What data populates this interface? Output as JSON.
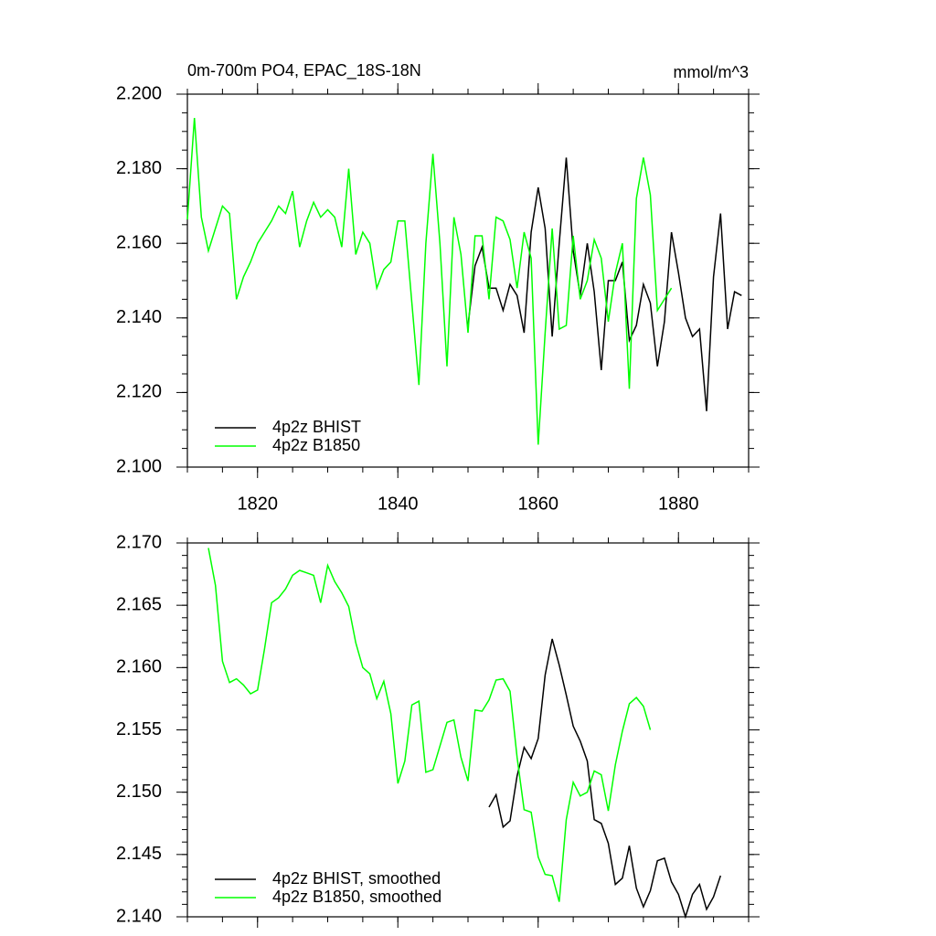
{
  "chart_data": [
    {
      "type": "line",
      "title": "0m-700m PO4, EPAC_18S-18N",
      "units": "mmol/m^3",
      "xlim": [
        1810,
        1890
      ],
      "xticks": [
        1820,
        1840,
        1860,
        1880
      ],
      "ylim": [
        2.1,
        2.2
      ],
      "yticks": [
        {
          "value": 2.1,
          "label": "2.100"
        },
        {
          "value": 2.12,
          "label": "2.120"
        },
        {
          "value": 2.14,
          "label": "2.140"
        },
        {
          "value": 2.16,
          "label": "2.160"
        },
        {
          "value": 2.18,
          "label": "2.180"
        },
        {
          "value": 2.2,
          "label": "2.200"
        }
      ],
      "legend": "lower left",
      "series": [
        {
          "name": "4p2z BHIST",
          "color": "#000000",
          "x": [
            1850,
            1851,
            1852,
            1853,
            1854,
            1855,
            1856,
            1857,
            1858,
            1859,
            1860,
            1861,
            1862,
            1863,
            1864,
            1865,
            1866,
            1867,
            1868,
            1869,
            1870,
            1871,
            1872,
            1873,
            1874,
            1875,
            1876,
            1877,
            1878,
            1879,
            1880,
            1881,
            1882,
            1883,
            1884,
            1885,
            1886,
            1887,
            1888,
            1889
          ],
          "values": [
            2.138,
            2.154,
            2.159,
            2.148,
            2.148,
            2.142,
            2.149,
            2.146,
            2.136,
            2.163,
            2.175,
            2.164,
            2.135,
            2.16,
            2.183,
            2.158,
            2.146,
            2.16,
            2.147,
            2.126,
            2.15,
            2.15,
            2.155,
            2.134,
            2.138,
            2.149,
            2.144,
            2.127,
            2.139,
            2.163,
            2.152,
            2.14,
            2.135,
            2.137,
            2.115,
            2.151,
            2.168,
            2.137,
            2.147,
            2.146
          ]
        },
        {
          "name": "4p2z B1850",
          "color": "#00ff00",
          "x": [
            1810,
            1811,
            1812,
            1813,
            1814,
            1815,
            1816,
            1817,
            1818,
            1819,
            1820,
            1821,
            1822,
            1823,
            1824,
            1825,
            1826,
            1827,
            1828,
            1829,
            1830,
            1831,
            1832,
            1833,
            1834,
            1835,
            1836,
            1837,
            1838,
            1839,
            1840,
            1841,
            1842,
            1843,
            1844,
            1845,
            1846,
            1847,
            1848,
            1849,
            1850,
            1851,
            1852,
            1853,
            1854,
            1855,
            1856,
            1857,
            1858,
            1859,
            1860,
            1861,
            1862,
            1863,
            1864,
            1865,
            1866,
            1867,
            1868,
            1869,
            1870,
            1871,
            1872,
            1873,
            1874,
            1875,
            1876,
            1877,
            1878,
            1879
          ],
          "values": [
            2.1664,
            2.1936,
            2.167,
            2.158,
            2.164,
            2.17,
            2.168,
            2.145,
            2.151,
            2.155,
            2.16,
            2.163,
            2.166,
            2.17,
            2.168,
            2.174,
            2.159,
            2.166,
            2.171,
            2.167,
            2.169,
            2.167,
            2.159,
            2.18,
            2.157,
            2.163,
            2.16,
            2.148,
            2.153,
            2.155,
            2.166,
            2.166,
            2.144,
            2.122,
            2.16,
            2.184,
            2.16,
            2.127,
            2.167,
            2.157,
            2.136,
            2.162,
            2.162,
            2.145,
            2.167,
            2.166,
            2.161,
            2.148,
            2.163,
            2.156,
            2.106,
            2.136,
            2.164,
            2.137,
            2.138,
            2.162,
            2.145,
            2.15,
            2.161,
            2.156,
            2.139,
            2.152,
            2.16,
            2.121,
            2.172,
            2.183,
            2.173,
            2.142,
            2.145,
            2.148
          ]
        }
      ]
    },
    {
      "type": "line",
      "xlim": [
        1810,
        1890
      ],
      "xticks": [
        1820,
        1840,
        1860,
        1880
      ],
      "ylim": [
        2.14,
        2.17
      ],
      "yticks": [
        {
          "value": 2.14,
          "label": "2.140"
        },
        2.145,
        {
          "value": 2.15,
          "label": "2.150"
        },
        2.155,
        {
          "value": 2.16,
          "label": "2.160"
        },
        2.165,
        {
          "value": 2.17,
          "label": "2.170"
        }
      ],
      "legend": "lower left",
      "series": [
        {
          "name": "4p2z BHIST, smoothed",
          "color": "#000000",
          "x": [
            1853,
            1854,
            1855,
            1856,
            1857,
            1858,
            1859,
            1860,
            1861,
            1862,
            1863,
            1864,
            1865,
            1866,
            1867,
            1868,
            1869,
            1870,
            1871,
            1872,
            1873,
            1874,
            1875,
            1876,
            1877,
            1878,
            1879,
            1880,
            1881,
            1882,
            1883,
            1884,
            1885,
            1886
          ],
          "values": [
            2.1488,
            2.1498,
            2.1472,
            2.1477,
            2.1513,
            2.1536,
            2.1527,
            2.1543,
            2.1594,
            2.1623,
            2.1602,
            2.1578,
            2.1553,
            2.1541,
            2.1525,
            2.1478,
            2.1475,
            2.1459,
            2.1426,
            2.1431,
            2.1457,
            2.1423,
            2.1408,
            2.1421,
            2.1445,
            2.1447,
            2.1428,
            2.1418,
            2.14,
            2.1418,
            2.1426,
            2.1406,
            2.1416,
            2.1433
          ]
        },
        {
          "name": "4p2z B1850, smoothed",
          "color": "#00ff00",
          "x": [
            1813,
            1814,
            1815,
            1816,
            1817,
            1818,
            1819,
            1820,
            1821,
            1822,
            1823,
            1824,
            1825,
            1826,
            1827,
            1828,
            1829,
            1830,
            1831,
            1832,
            1833,
            1834,
            1835,
            1836,
            1837,
            1838,
            1839,
            1840,
            1841,
            1842,
            1843,
            1844,
            1845,
            1846,
            1847,
            1848,
            1849,
            1850,
            1851,
            1852,
            1853,
            1854,
            1855,
            1856,
            1857,
            1858,
            1859,
            1860,
            1861,
            1862,
            1863,
            1864,
            1865,
            1866,
            1867,
            1868,
            1869,
            1870,
            1871,
            1872,
            1873,
            1874,
            1875,
            1876
          ],
          "values": [
            2.1696,
            2.1666,
            2.1605,
            2.1588,
            2.1591,
            2.1586,
            2.1579,
            2.1582,
            2.1615,
            2.1652,
            2.1656,
            2.1663,
            2.1674,
            2.1678,
            2.1676,
            2.1674,
            2.1652,
            2.1682,
            2.1669,
            2.166,
            2.1649,
            2.162,
            2.16,
            2.1595,
            2.1575,
            2.1589,
            2.1563,
            2.1507,
            2.1525,
            2.157,
            2.1573,
            2.1516,
            2.1518,
            2.1537,
            2.1556,
            2.1558,
            2.1528,
            2.1509,
            2.1566,
            2.1565,
            2.1574,
            2.159,
            2.1591,
            2.1581,
            2.1528,
            2.1486,
            2.1484,
            2.1448,
            2.1434,
            2.1433,
            2.1412,
            2.1478,
            2.1508,
            2.1497,
            2.15,
            2.1517,
            2.1514,
            2.1485,
            2.1522,
            2.1549,
            2.1571,
            2.1576,
            2.1569,
            2.155
          ]
        }
      ]
    }
  ]
}
